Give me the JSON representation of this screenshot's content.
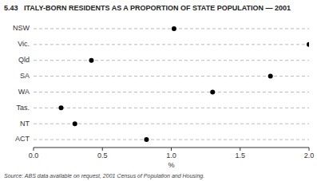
{
  "chart_data": {
    "type": "dot",
    "orientation": "horizontal",
    "title": "5.43   ITALY-BORN RESIDENTS AS A PROPORTION OF STATE POPULATION — 2001",
    "annotations": [
      "Source: ABS data available on request, 2001 Census of Population and Housing."
    ],
    "categories": [
      "NSW",
      "Vic.",
      "Qld",
      "SA",
      "WA",
      "Tas.",
      "NT",
      "ACT"
    ],
    "values": [
      1.02,
      2.0,
      0.42,
      1.72,
      1.3,
      0.2,
      0.3,
      0.82
    ],
    "x_label": "%",
    "xlim": [
      0.0,
      2.0
    ],
    "xticks": [
      {
        "value": 0.0,
        "label": "0.0"
      },
      0.5,
      {
        "value": 1.0,
        "label": "1.0"
      },
      1.5,
      {
        "value": 2.0,
        "label": "2.0"
      }
    ],
    "color": "#000000",
    "marker": "circle",
    "line_style": "dashed",
    "grid": true
  }
}
